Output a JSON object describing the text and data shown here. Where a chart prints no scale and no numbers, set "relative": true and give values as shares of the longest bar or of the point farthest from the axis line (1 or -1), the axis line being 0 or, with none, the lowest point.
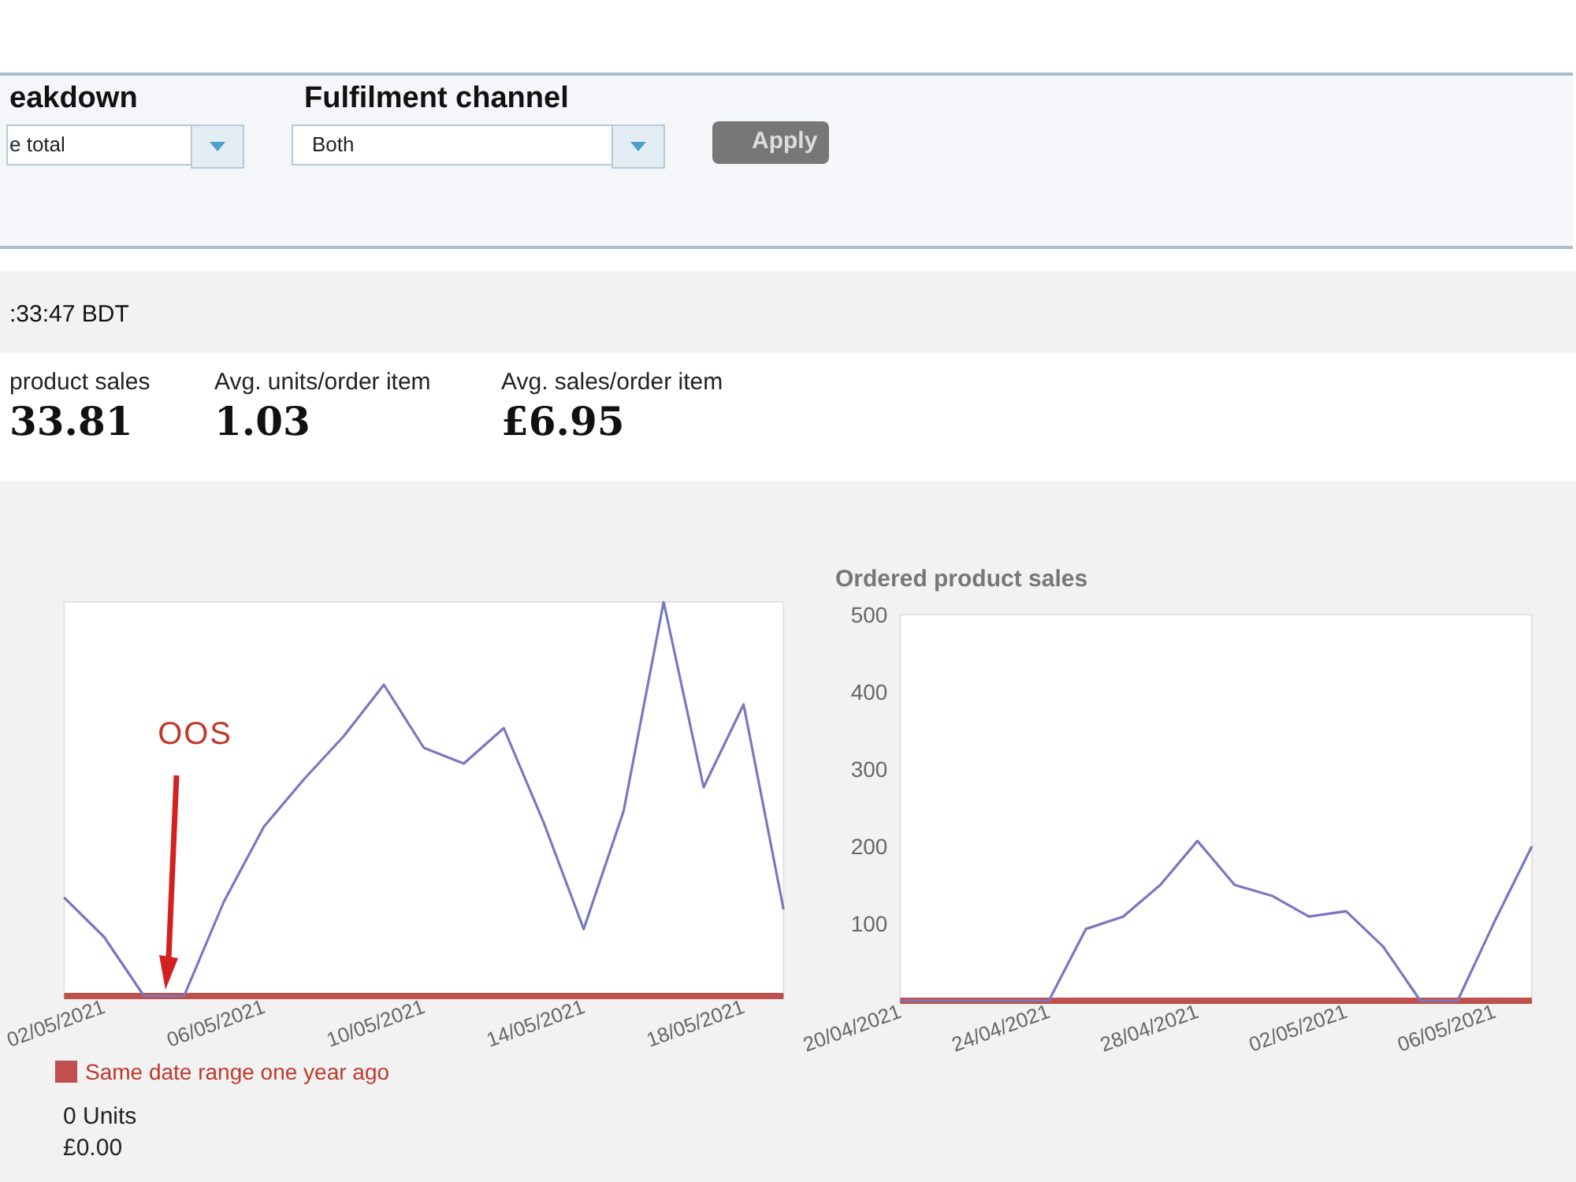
{
  "chart_data": [
    {
      "type": "other",
      "annotations": [
        "eakdown",
        "e total",
        "Fulfilment channel",
        "Both",
        "Apply",
        ":33:47 BDT",
        "product sales",
        "33.81",
        "Avg. units/order item",
        "1.03",
        "Avg. sales/order item",
        "£6.95"
      ]
    },
    {
      "type": "line",
      "relative": true,
      "marker": "none",
      "legend": "bottom left",
      "categories": [
        null,
        "02/05/2021",
        null,
        null,
        null,
        "06/05/2021",
        null,
        null,
        null,
        "10/05/2021",
        null,
        null,
        null,
        "14/05/2021",
        null,
        null,
        null,
        "18/05/2021",
        null
      ],
      "series": [
        {
          "name": "Same date range one year ago",
          "color": "#c0504d",
          "values": [
            0,
            0,
            0,
            0,
            0,
            0,
            0,
            0,
            0,
            0,
            0,
            0,
            0,
            0,
            0,
            0,
            0,
            0,
            0
          ]
        },
        {
          "color": "#7878c0",
          "values": [
            0.25,
            0.15,
            0,
            0,
            0.24,
            0.43,
            0.55,
            0.66,
            0.79,
            0.63,
            0.59,
            0.68,
            0.44,
            0.17,
            0.47,
            1,
            0.53,
            0.74,
            0.22
          ]
        }
      ],
      "annotations": [
        "OOS",
        "0 Units",
        "£0.00"
      ]
    },
    {
      "type": "line",
      "title": "Ordered product sales",
      "marker": "none",
      "categories": [
        "20/04/2021",
        null,
        null,
        null,
        "24/04/2021",
        null,
        null,
        null,
        "28/04/2021",
        null,
        null,
        null,
        "02/05/2021",
        null,
        null,
        null,
        "06/05/2021",
        null
      ],
      "ylim": [
        0,
        500
      ],
      "yticks": [
        100,
        200,
        300,
        400,
        500
      ],
      "series": [
        {
          "color": "#c0504d",
          "values": [
            0,
            0,
            0,
            0,
            0,
            0,
            0,
            0,
            0,
            0,
            0,
            0,
            0,
            0,
            0,
            0,
            0,
            0
          ]
        },
        {
          "color": "#7878c0",
          "values": [
            0,
            0,
            0,
            0,
            0,
            93,
            109,
            150,
            207,
            150,
            136,
            109,
            116,
            70,
            0,
            0,
            103,
            200
          ]
        }
      ]
    }
  ]
}
